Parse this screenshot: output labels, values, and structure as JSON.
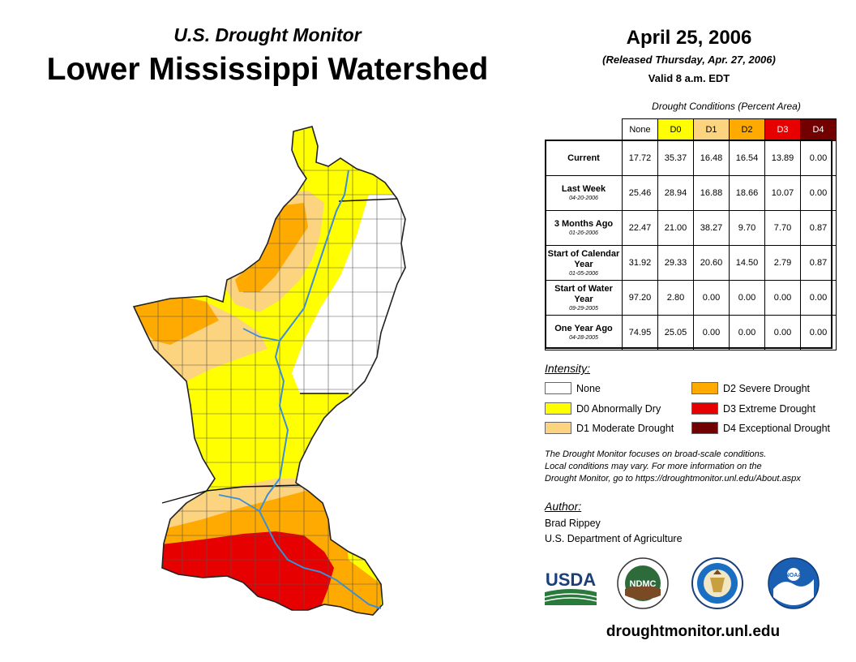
{
  "header": {
    "subtitle": "U.S. Drought Monitor",
    "title": "Lower Mississippi Watershed",
    "date": "April 25, 2006",
    "released": "(Released Thursday, Apr. 27, 2006)",
    "valid": "Valid 8 a.m. EDT"
  },
  "table": {
    "caption": "Drought Conditions (Percent Area)",
    "columns": [
      "None",
      "D0",
      "D1",
      "D2",
      "D3",
      "D4"
    ],
    "rows": [
      {
        "label": "Current",
        "date": "",
        "values": [
          "17.72",
          "35.37",
          "16.48",
          "16.54",
          "13.89",
          "0.00"
        ]
      },
      {
        "label": "Last Week",
        "date": "04-20-2006",
        "values": [
          "25.46",
          "28.94",
          "16.88",
          "18.66",
          "10.07",
          "0.00"
        ]
      },
      {
        "label": "3 Months Ago",
        "date": "01-26-2006",
        "values": [
          "22.47",
          "21.00",
          "38.27",
          "9.70",
          "7.70",
          "0.87"
        ]
      },
      {
        "label": "Start of Calendar Year",
        "date": "01-05-2006",
        "values": [
          "31.92",
          "29.33",
          "20.60",
          "14.50",
          "2.79",
          "0.87"
        ]
      },
      {
        "label": "Start of Water Year",
        "date": "09-29-2005",
        "values": [
          "97.20",
          "2.80",
          "0.00",
          "0.00",
          "0.00",
          "0.00"
        ]
      },
      {
        "label": "One Year Ago",
        "date": "04-28-2005",
        "values": [
          "74.95",
          "25.05",
          "0.00",
          "0.00",
          "0.00",
          "0.00"
        ]
      }
    ]
  },
  "legend": {
    "title": "Intensity:",
    "items": [
      {
        "label": "None",
        "color": "#ffffff"
      },
      {
        "label": "D0 Abnormally Dry",
        "color": "#ffff00"
      },
      {
        "label": "D1 Moderate Drought",
        "color": "#fcd37f"
      },
      {
        "label": "D2 Severe Drought",
        "color": "#ffaa00"
      },
      {
        "label": "D3 Extreme Drought",
        "color": "#e60000"
      },
      {
        "label": "D4 Exceptional Drought",
        "color": "#730000"
      }
    ]
  },
  "note": {
    "line1": "The Drought Monitor focuses on broad-scale conditions.",
    "line2": "Local conditions may vary. For more information on the",
    "line3": "Drought Monitor, go to https://droughtmonitor.unl.edu/About.aspx"
  },
  "author": {
    "title": "Author:",
    "name": "Brad Rippey",
    "org": "U.S. Department of Agriculture"
  },
  "logos": {
    "usda": "USDA",
    "ndmc": "NDMC",
    "noaa": "NOAA"
  },
  "footer": {
    "url": "droughtmonitor.unl.edu"
  },
  "colors": {
    "river": "#3b8fd6",
    "border": "#222222"
  }
}
